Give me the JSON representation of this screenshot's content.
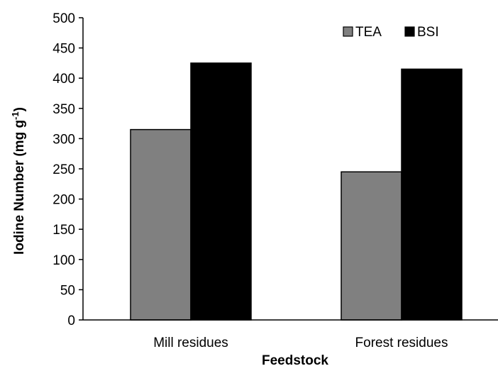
{
  "chart_data": {
    "type": "bar",
    "categories": [
      "Mill residues",
      "Forest residues"
    ],
    "series": [
      {
        "name": "TEA",
        "values": [
          315,
          245
        ],
        "color": "#808080"
      },
      {
        "name": "BSI",
        "values": [
          425,
          415
        ],
        "color": "#000000"
      }
    ],
    "xlabel": "Feedstock",
    "ylabel": "Iodine Number (mg g",
    "ylabel_superscript": "-1",
    "ylabel_suffix": ")",
    "ylim": [
      0,
      500
    ],
    "yticks": [
      0,
      50,
      100,
      150,
      200,
      250,
      300,
      350,
      400,
      450,
      500
    ],
    "grid": false,
    "legend_position": "top-right"
  }
}
